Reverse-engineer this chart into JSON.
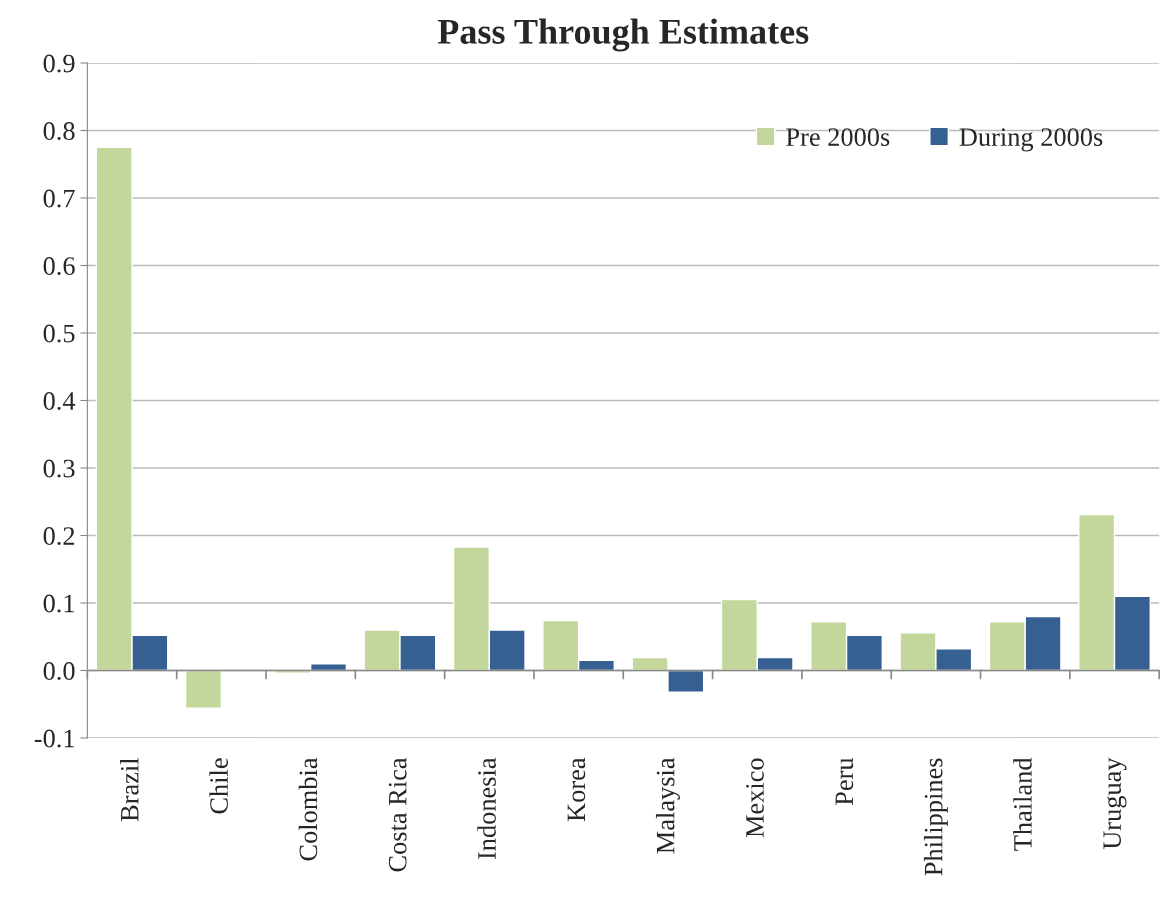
{
  "chart_data": {
    "type": "bar",
    "title": "Pass Through Estimates",
    "categories": [
      "Brazil",
      "Chile",
      "Colombia",
      "Costa Rica",
      "Indonesia",
      "Korea",
      "Malaysia",
      "Mexico",
      "Peru",
      "Philippines",
      "Thailand",
      "Uruguay"
    ],
    "series": [
      {
        "name": "Pre 2000s",
        "color": "#c3d69b",
        "values": [
          0.775,
          -0.056,
          -0.004,
          0.06,
          0.183,
          0.074,
          0.019,
          0.105,
          0.072,
          0.056,
          0.072,
          0.231
        ]
      },
      {
        "name": "During 2000s",
        "color": "#366092",
        "values": [
          0.052,
          null,
          0.01,
          0.052,
          0.06,
          0.015,
          -0.032,
          0.019,
          0.052,
          0.032,
          0.08,
          0.11
        ]
      }
    ],
    "ylim": [
      -0.1,
      0.9
    ],
    "yticks": [
      {
        "value": -0.1,
        "label": "-0.1"
      },
      {
        "value": 0.0,
        "label": "0.0"
      },
      {
        "value": 0.1,
        "label": "0.1"
      },
      {
        "value": 0.2,
        "label": "0.2"
      },
      {
        "value": 0.3,
        "label": "0.3"
      },
      {
        "value": 0.4,
        "label": "0.4"
      },
      {
        "value": 0.5,
        "label": "0.5"
      },
      {
        "value": 0.6,
        "label": "0.6"
      },
      {
        "value": 0.7,
        "label": "0.7"
      },
      {
        "value": 0.8,
        "label": "0.8"
      },
      {
        "value": 0.9,
        "label": "0.9"
      }
    ],
    "grid": "y",
    "legend": "top right"
  }
}
